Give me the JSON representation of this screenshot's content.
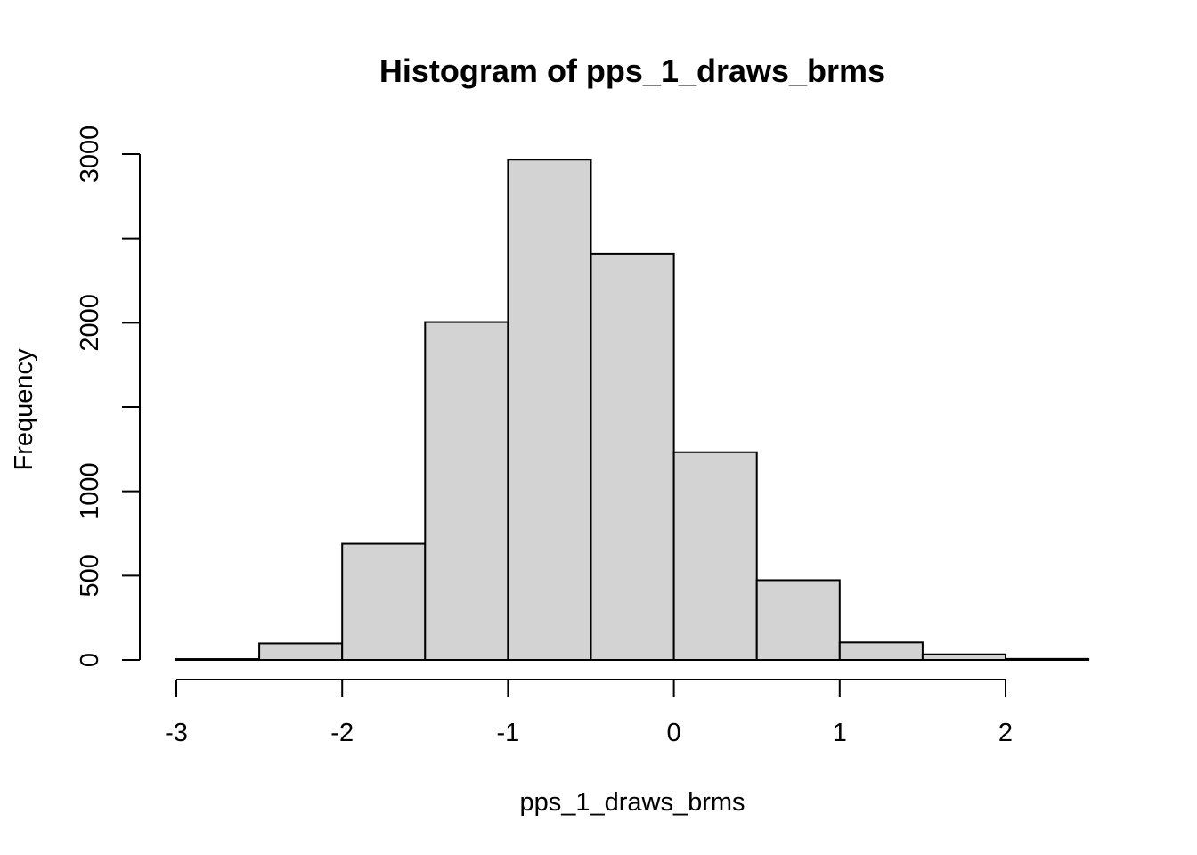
{
  "chart_data": {
    "type": "bar",
    "title": "Histogram of pps_1_draws_brms",
    "xlabel": "pps_1_draws_brms",
    "ylabel": "Frequency",
    "bins": [
      {
        "x0": -3.0,
        "x1": -2.5,
        "count": 5
      },
      {
        "x0": -2.5,
        "x1": -2.0,
        "count": 98
      },
      {
        "x0": -2.0,
        "x1": -1.5,
        "count": 689
      },
      {
        "x0": -1.5,
        "x1": -1.0,
        "count": 2004
      },
      {
        "x0": -1.0,
        "x1": -0.5,
        "count": 2967
      },
      {
        "x0": -0.5,
        "x1": 0.0,
        "count": 2409
      },
      {
        "x0": 0.0,
        "x1": 0.5,
        "count": 1232
      },
      {
        "x0": 0.5,
        "x1": 1.0,
        "count": 473
      },
      {
        "x0": 1.0,
        "x1": 1.5,
        "count": 104
      },
      {
        "x0": 1.5,
        "x1": 2.0,
        "count": 33
      },
      {
        "x0": 2.0,
        "x1": 2.5,
        "count": 6
      }
    ],
    "xlim": [
      -3,
      2.5
    ],
    "ylim": [
      0,
      3000
    ],
    "x_ticks": [
      -3,
      -2,
      -1,
      0,
      1,
      2
    ],
    "x_tick_labels": [
      "-3",
      "-2",
      "-1",
      "0",
      "1",
      "2"
    ],
    "y_ticks": [
      0,
      500,
      1000,
      1500,
      2000,
      2500,
      3000
    ],
    "y_tick_labels": [
      "0",
      "500",
      "1000",
      "",
      "2000",
      "",
      "3000"
    ],
    "grid": false,
    "bar_fill": "#d3d3d3",
    "bar_stroke": "#000000"
  }
}
